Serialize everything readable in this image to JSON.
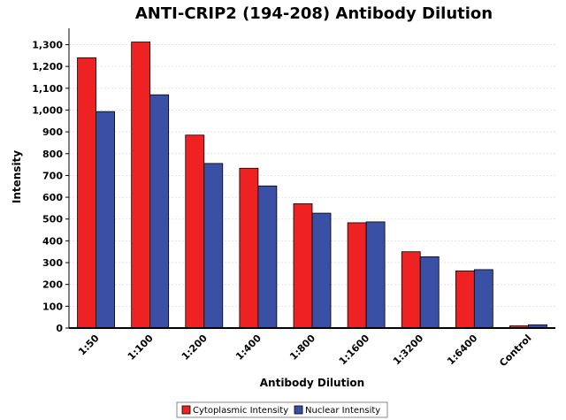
{
  "chart_data": {
    "type": "bar",
    "title": "ANTI-CRIP2 (194-208) Antibody Dilution",
    "xlabel": "Antibody Dilution",
    "ylabel": "Intensity",
    "categories": [
      "1:50",
      "1:100",
      "1:200",
      "1:400",
      "1:800",
      "1:1600",
      "1:3200",
      "1:6400",
      "Control"
    ],
    "series": [
      {
        "name": "Cytoplasmic Intensity",
        "color": "#ee2222",
        "values": [
          1240,
          1312,
          885,
          733,
          570,
          483,
          350,
          262,
          10
        ]
      },
      {
        "name": "Nuclear Intensity",
        "color": "#3a50a4",
        "values": [
          993,
          1070,
          755,
          652,
          527,
          487,
          327,
          268,
          15
        ]
      }
    ],
    "ylim": [
      0,
      1375
    ],
    "yticks": [
      0,
      100,
      200,
      300,
      400,
      500,
      600,
      700,
      800,
      900,
      1000,
      1100,
      1200,
      1300
    ],
    "ytick_labels": [
      "0",
      "100",
      "200",
      "300",
      "400",
      "500",
      "600",
      "700",
      "800",
      "900",
      "1,000",
      "1,100",
      "1,200",
      "1,300"
    ],
    "grid": true,
    "legend_position": "bottom"
  }
}
